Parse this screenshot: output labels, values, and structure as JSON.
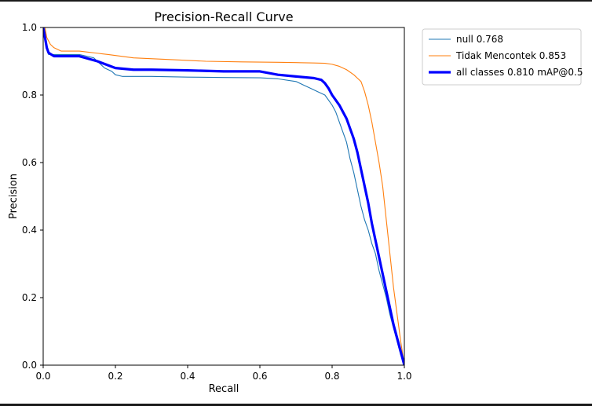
{
  "chart_data": {
    "type": "line",
    "title": "Precision-Recall Curve",
    "xlabel": "Recall",
    "ylabel": "Precision",
    "xlim": [
      0,
      1
    ],
    "ylim": [
      0,
      1
    ],
    "xticks": [
      "0.0",
      "0.2",
      "0.4",
      "0.6",
      "0.8",
      "1.0"
    ],
    "yticks": [
      "0.0",
      "0.2",
      "0.4",
      "0.6",
      "0.8",
      "1.0"
    ],
    "grid": false,
    "legend_position": "outside-top-right",
    "series": [
      {
        "name": "null 0.768",
        "color": "#1f77b4",
        "emphasis": "thin",
        "x": [
          0,
          0.005,
          0.008,
          0.012,
          0.015,
          0.03,
          0.05,
          0.1,
          0.14,
          0.16,
          0.17,
          0.19,
          0.2,
          0.22,
          0.3,
          0.4,
          0.5,
          0.6,
          0.65,
          0.7,
          0.72,
          0.74,
          0.76,
          0.78,
          0.8,
          0.81,
          0.82,
          0.83,
          0.84,
          0.85,
          0.86,
          0.87,
          0.88,
          0.89,
          0.9,
          0.91,
          0.92,
          0.93,
          0.94,
          0.95,
          0.96,
          0.97,
          0.98,
          0.99,
          1.0
        ],
        "y": [
          1.0,
          1.0,
          0.96,
          0.93,
          0.92,
          0.92,
          0.92,
          0.92,
          0.91,
          0.89,
          0.88,
          0.87,
          0.86,
          0.855,
          0.855,
          0.853,
          0.852,
          0.851,
          0.848,
          0.84,
          0.83,
          0.82,
          0.81,
          0.8,
          0.77,
          0.75,
          0.72,
          0.69,
          0.66,
          0.61,
          0.57,
          0.52,
          0.47,
          0.43,
          0.4,
          0.36,
          0.33,
          0.28,
          0.24,
          0.2,
          0.15,
          0.11,
          0.07,
          0.03,
          0.0
        ]
      },
      {
        "name": "Tidak Mencontek 0.853",
        "color": "#ff7f0e",
        "emphasis": "thin",
        "x": [
          0,
          0.005,
          0.01,
          0.02,
          0.03,
          0.05,
          0.1,
          0.18,
          0.25,
          0.35,
          0.45,
          0.55,
          0.65,
          0.7,
          0.75,
          0.78,
          0.8,
          0.82,
          0.84,
          0.86,
          0.87,
          0.88,
          0.89,
          0.9,
          0.91,
          0.92,
          0.93,
          0.94,
          0.95,
          0.96,
          0.97,
          0.98,
          0.99,
          1.0
        ],
        "y": [
          1.0,
          1.0,
          0.97,
          0.95,
          0.94,
          0.93,
          0.93,
          0.92,
          0.91,
          0.905,
          0.9,
          0.898,
          0.897,
          0.896,
          0.895,
          0.894,
          0.891,
          0.885,
          0.875,
          0.86,
          0.85,
          0.84,
          0.81,
          0.77,
          0.72,
          0.66,
          0.6,
          0.53,
          0.43,
          0.33,
          0.23,
          0.15,
          0.07,
          0.0
        ]
      },
      {
        "name": "all classes 0.810 mAP@0.5",
        "color": "#0000ff",
        "emphasis": "thick",
        "x": [
          0,
          0.005,
          0.01,
          0.015,
          0.03,
          0.1,
          0.15,
          0.2,
          0.25,
          0.3,
          0.4,
          0.5,
          0.6,
          0.65,
          0.7,
          0.75,
          0.77,
          0.78,
          0.79,
          0.8,
          0.81,
          0.82,
          0.83,
          0.84,
          0.85,
          0.86,
          0.87,
          0.88,
          0.89,
          0.9,
          0.91,
          0.92,
          0.93,
          0.94,
          0.95,
          0.96,
          0.97,
          0.98,
          0.99,
          1.0
        ],
        "y": [
          1.0,
          0.97,
          0.94,
          0.925,
          0.915,
          0.915,
          0.9,
          0.88,
          0.875,
          0.875,
          0.873,
          0.87,
          0.87,
          0.86,
          0.855,
          0.85,
          0.845,
          0.835,
          0.82,
          0.8,
          0.785,
          0.77,
          0.75,
          0.73,
          0.7,
          0.67,
          0.63,
          0.58,
          0.53,
          0.48,
          0.42,
          0.37,
          0.32,
          0.27,
          0.22,
          0.17,
          0.12,
          0.08,
          0.04,
          0.0
        ]
      }
    ]
  }
}
